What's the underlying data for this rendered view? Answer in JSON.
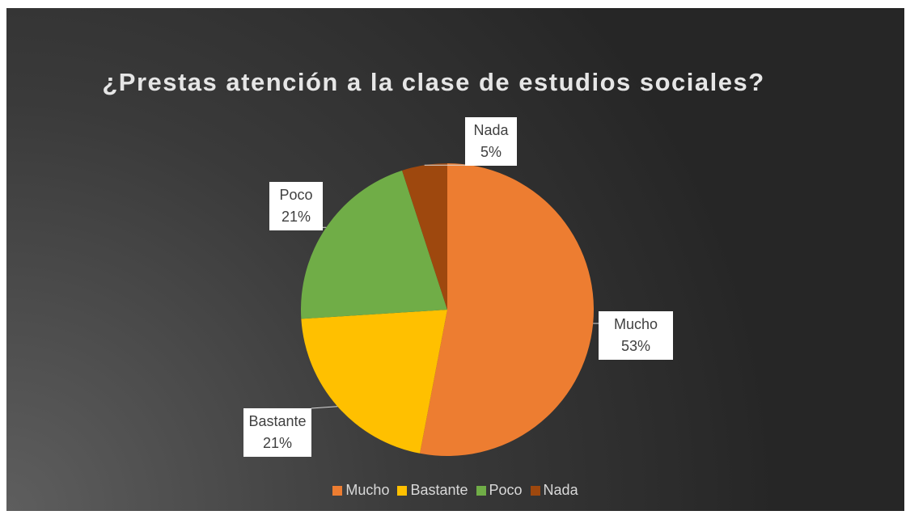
{
  "chart_data": {
    "type": "pie",
    "title": "¿Prestas atención a la clase de estudios sociales?",
    "categories": [
      "Mucho",
      "Bastante",
      "Poco",
      "Nada"
    ],
    "values": [
      53,
      21,
      21,
      5
    ],
    "value_labels": [
      "53%",
      "21%",
      "21%",
      "5%"
    ],
    "colors": [
      "#ed7d31",
      "#ffc000",
      "#70ad47",
      "#9e480e"
    ],
    "legend": "bottom"
  }
}
